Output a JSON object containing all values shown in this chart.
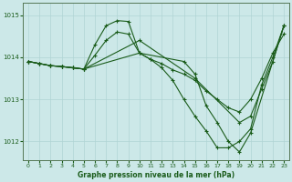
{
  "title": "Graphe pression niveau de la mer (hPa)",
  "bg_color": "#cce8e8",
  "grid_color": "#b0d4d4",
  "line_color": "#1a5c1a",
  "marker": "+",
  "markersize": 3,
  "linewidth": 0.8,
  "xlim": [
    -0.5,
    23.5
  ],
  "ylim": [
    1011.55,
    1015.3
  ],
  "xticks": [
    0,
    1,
    2,
    3,
    4,
    5,
    6,
    7,
    8,
    9,
    10,
    11,
    12,
    13,
    14,
    15,
    16,
    17,
    18,
    19,
    20,
    21,
    22,
    23
  ],
  "yticks": [
    1012,
    1013,
    1014,
    1015
  ],
  "series1": [
    [
      0,
      1013.9
    ],
    [
      1,
      1013.85
    ],
    [
      2,
      1013.8
    ],
    [
      3,
      1013.78
    ],
    [
      4,
      1013.75
    ],
    [
      5,
      1013.72
    ],
    [
      6,
      1014.05
    ],
    [
      7,
      1014.4
    ],
    [
      8,
      1014.6
    ],
    [
      9,
      1014.55
    ],
    [
      10,
      1014.1
    ],
    [
      11,
      1013.95
    ],
    [
      12,
      1013.85
    ],
    [
      13,
      1013.7
    ],
    [
      14,
      1013.6
    ],
    [
      15,
      1013.45
    ],
    [
      16,
      1013.2
    ],
    [
      17,
      1013.0
    ],
    [
      18,
      1012.8
    ],
    [
      19,
      1012.7
    ],
    [
      20,
      1013.0
    ],
    [
      21,
      1013.5
    ],
    [
      22,
      1014.1
    ],
    [
      23,
      1014.55
    ]
  ],
  "series2": [
    [
      0,
      1013.9
    ],
    [
      1,
      1013.85
    ],
    [
      2,
      1013.8
    ],
    [
      3,
      1013.78
    ],
    [
      4,
      1013.75
    ],
    [
      5,
      1013.72
    ],
    [
      6,
      1014.3
    ],
    [
      7,
      1014.75
    ],
    [
      8,
      1014.87
    ],
    [
      9,
      1014.85
    ],
    [
      10,
      1014.1
    ],
    [
      11,
      1013.95
    ],
    [
      12,
      1013.75
    ],
    [
      13,
      1013.45
    ],
    [
      14,
      1013.0
    ],
    [
      15,
      1012.6
    ],
    [
      16,
      1012.25
    ],
    [
      17,
      1011.85
    ],
    [
      18,
      1011.85
    ],
    [
      19,
      1012.0
    ],
    [
      20,
      1012.3
    ],
    [
      21,
      1013.35
    ],
    [
      22,
      1014.0
    ],
    [
      23,
      1014.75
    ]
  ],
  "series3": [
    [
      0,
      1013.9
    ],
    [
      1,
      1013.85
    ],
    [
      2,
      1013.8
    ],
    [
      3,
      1013.78
    ],
    [
      4,
      1013.75
    ],
    [
      5,
      1013.72
    ],
    [
      10,
      1014.1
    ],
    [
      14,
      1013.9
    ],
    [
      15,
      1013.6
    ],
    [
      16,
      1012.85
    ],
    [
      17,
      1012.45
    ],
    [
      18,
      1012.0
    ],
    [
      19,
      1011.75
    ],
    [
      20,
      1012.2
    ],
    [
      23,
      1014.75
    ]
  ],
  "series4": [
    [
      0,
      1013.9
    ],
    [
      1,
      1013.85
    ],
    [
      2,
      1013.8
    ],
    [
      3,
      1013.78
    ],
    [
      4,
      1013.75
    ],
    [
      5,
      1013.72
    ],
    [
      10,
      1014.4
    ],
    [
      15,
      1013.5
    ],
    [
      19,
      1012.45
    ],
    [
      20,
      1012.6
    ],
    [
      21,
      1013.25
    ],
    [
      22,
      1013.9
    ],
    [
      23,
      1014.75
    ]
  ]
}
